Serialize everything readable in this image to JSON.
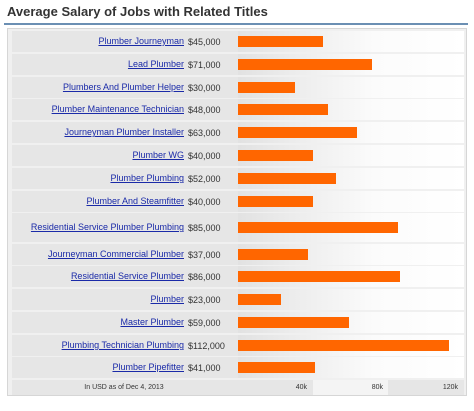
{
  "header": {
    "title": "Average Salary of Jobs with Related Titles"
  },
  "chart_data": {
    "type": "bar",
    "orientation": "horizontal",
    "title": "Average Salary of Jobs with Related Titles",
    "categories": [
      "Plumber Journeyman",
      "Lead Plumber",
      "Plumbers And Plumber Helper",
      "Plumber Maintenance Technician",
      "Journeyman Plumber Installer",
      "Plumber WG",
      "Plumber Plumbing",
      "Plumber And Steamfitter",
      "Residential Service Plumber Plumbing",
      "Journeyman Commercial Plumber",
      "Residential Service Plumber",
      "Plumber",
      "Master Plumber",
      "Plumbing Technician Plumbing",
      "Plumber Pipefitter"
    ],
    "values": [
      45000,
      71000,
      30000,
      48000,
      63000,
      40000,
      52000,
      40000,
      85000,
      37000,
      86000,
      23000,
      59000,
      112000,
      41000
    ],
    "value_labels": [
      "$45,000",
      "$71,000",
      "$30,000",
      "$48,000",
      "$63,000",
      "$40,000",
      "$52,000",
      "$40,000",
      "$85,000",
      "$37,000",
      "$86,000",
      "$23,000",
      "$59,000",
      "$112,000",
      "$41,000"
    ],
    "xlim": [
      0,
      120000
    ],
    "ticks": [
      40000,
      80000,
      120000
    ],
    "tick_labels": [
      "40k",
      "80k",
      "120k"
    ],
    "footnote": "In USD as of Dec 4, 2013",
    "bar_color": "#ff6600"
  }
}
